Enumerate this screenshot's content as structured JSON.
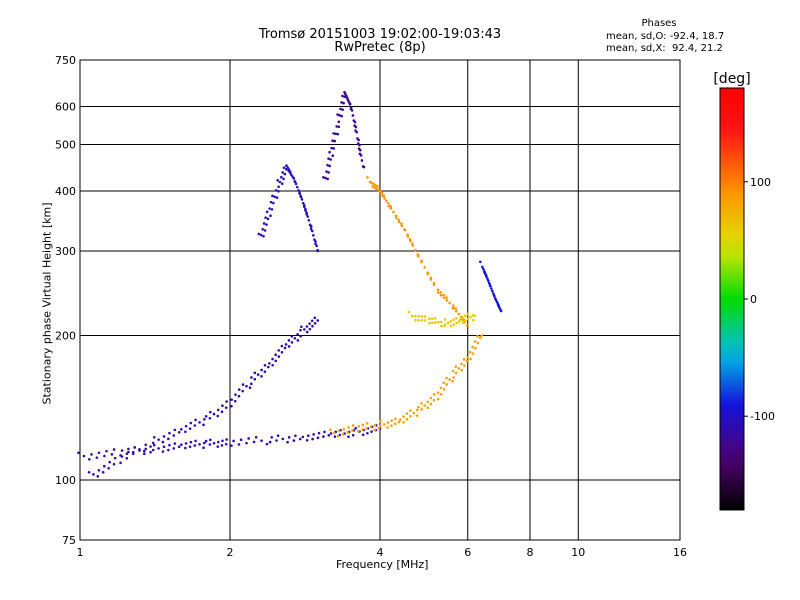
{
  "title_line1": "Tromsø 20151003 19:02:00-19:03:43",
  "title_line2": "RwPretec (8p)",
  "phase_box": {
    "heading": "Phases",
    "line_o": "mean, sd,O: -92.4, 18.7",
    "line_x": "mean, sd,X:  92.4, 21.2"
  },
  "colorbar": {
    "unit_label": "[deg]",
    "tick_labels": [
      "100",
      "0",
      "-100"
    ],
    "range": [
      -180,
      180
    ]
  },
  "chart_data": {
    "type": "scatter",
    "xlabel": "Frequency [MHz]",
    "ylabel": "Stationary phase Virtual Height [km]",
    "x_scale": "log",
    "y_scale": "log",
    "xlim": [
      1,
      16
    ],
    "ylim": [
      75,
      750
    ],
    "x_ticks": [
      1,
      2,
      4,
      6,
      8,
      10,
      16
    ],
    "y_ticks": [
      75,
      100,
      200,
      300,
      400,
      500,
      600,
      750
    ],
    "grid": true,
    "color_encoding": "phase [deg]",
    "traces": [
      {
        "kind": "O-mode",
        "phase_deg": -110,
        "points": [
          [
            1.0,
            112
          ],
          [
            1.2,
            114
          ],
          [
            1.4,
            116
          ],
          [
            1.6,
            118
          ],
          [
            1.8,
            119
          ],
          [
            2.0,
            120
          ],
          [
            2.4,
            121
          ],
          [
            2.8,
            123
          ],
          [
            3.2,
            124
          ],
          [
            3.6,
            126
          ],
          [
            4.0,
            128
          ]
        ]
      },
      {
        "kind": "O-mode",
        "phase_deg": -110,
        "points": [
          [
            1.05,
            102
          ],
          [
            1.2,
            110
          ],
          [
            1.4,
            120
          ],
          [
            1.6,
            127
          ],
          [
            1.8,
            134
          ],
          [
            2.0,
            145
          ],
          [
            2.2,
            160
          ],
          [
            2.4,
            175
          ],
          [
            2.6,
            190
          ],
          [
            2.8,
            205
          ],
          [
            3.0,
            215
          ]
        ]
      },
      {
        "kind": "X-mode",
        "phase_deg": 85,
        "points": [
          [
            3.2,
            125
          ],
          [
            3.6,
            128
          ],
          [
            4.0,
            130
          ],
          [
            4.4,
            133
          ],
          [
            4.8,
            140
          ],
          [
            5.2,
            150
          ],
          [
            5.6,
            165
          ],
          [
            6.0,
            180
          ],
          [
            6.4,
            200
          ]
        ]
      },
      {
        "kind": "F-region",
        "phase_deg": -105,
        "points": [
          [
            2.3,
            320
          ],
          [
            2.4,
            360
          ],
          [
            2.5,
            410
          ],
          [
            2.6,
            450
          ],
          [
            2.7,
            420
          ],
          [
            2.8,
            380
          ],
          [
            2.9,
            340
          ],
          [
            3.0,
            300
          ]
        ]
      },
      {
        "kind": "F-region",
        "phase_deg": -120,
        "points": [
          [
            3.1,
            420
          ],
          [
            3.2,
            480
          ],
          [
            3.3,
            560
          ],
          [
            3.4,
            640
          ],
          [
            3.5,
            600
          ],
          [
            3.6,
            520
          ],
          [
            3.7,
            450
          ]
        ]
      },
      {
        "kind": "X-mode",
        "phase_deg": 90,
        "points": [
          [
            3.8,
            420
          ],
          [
            4.0,
            400
          ],
          [
            4.2,
            370
          ],
          [
            4.5,
            330
          ],
          [
            4.8,
            290
          ],
          [
            5.2,
            250
          ],
          [
            5.6,
            230
          ],
          [
            6.0,
            210
          ]
        ]
      },
      {
        "kind": "X-mode",
        "phase_deg": 60,
        "points": [
          [
            4.6,
            220
          ],
          [
            5.0,
            215
          ],
          [
            5.4,
            212
          ],
          [
            5.8,
            215
          ],
          [
            6.2,
            220
          ]
        ]
      },
      {
        "kind": "scattered",
        "phase_deg": -90,
        "points": [
          [
            6.4,
            280
          ],
          [
            6.6,
            260
          ],
          [
            6.8,
            240
          ],
          [
            7.0,
            225
          ]
        ]
      }
    ]
  }
}
